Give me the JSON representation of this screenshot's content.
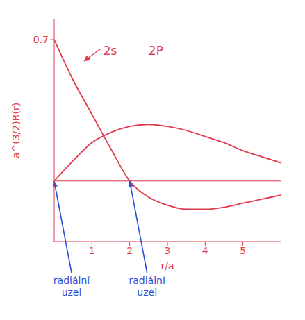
{
  "chart_data": {
    "type": "line",
    "x_label": "r/a",
    "y_label": "a^(3/2)R(r)",
    "x": [
      0,
      0.5,
      1,
      1.5,
      2,
      2.5,
      3,
      3.5,
      4,
      4.5,
      5,
      5.5,
      6
    ],
    "series": [
      {
        "name": "2s",
        "color": "#e23a4e",
        "values": [
          0.7,
          0.5,
          0.33,
          0.16,
          0,
          -0.08,
          -0.12,
          -0.14,
          -0.14,
          -0.13,
          -0.11,
          -0.09,
          -0.07
        ]
      },
      {
        "name": "2P",
        "color": "#e23a4e",
        "values": [
          0,
          0.1,
          0.19,
          0.24,
          0.27,
          0.28,
          0.27,
          0.25,
          0.22,
          0.19,
          0.15,
          0.12,
          0.09
        ]
      }
    ],
    "xlim": [
      0,
      6
    ],
    "xticks": [
      1,
      2,
      3,
      4,
      5
    ],
    "ylim": [
      -0.3,
      0.8
    ],
    "yticks": [
      0.7
    ],
    "annotations": [
      {
        "text": "2s",
        "x": 1.3,
        "y": 0.64,
        "arrow": true
      },
      {
        "text": "2P",
        "x": 2.5,
        "y": 0.64,
        "arrow": false
      }
    ],
    "node_labels": [
      {
        "text": "radiální uzel",
        "x": 0,
        "y": 0
      },
      {
        "text": "radiální uzel",
        "x": 2,
        "y": 0
      }
    ]
  }
}
